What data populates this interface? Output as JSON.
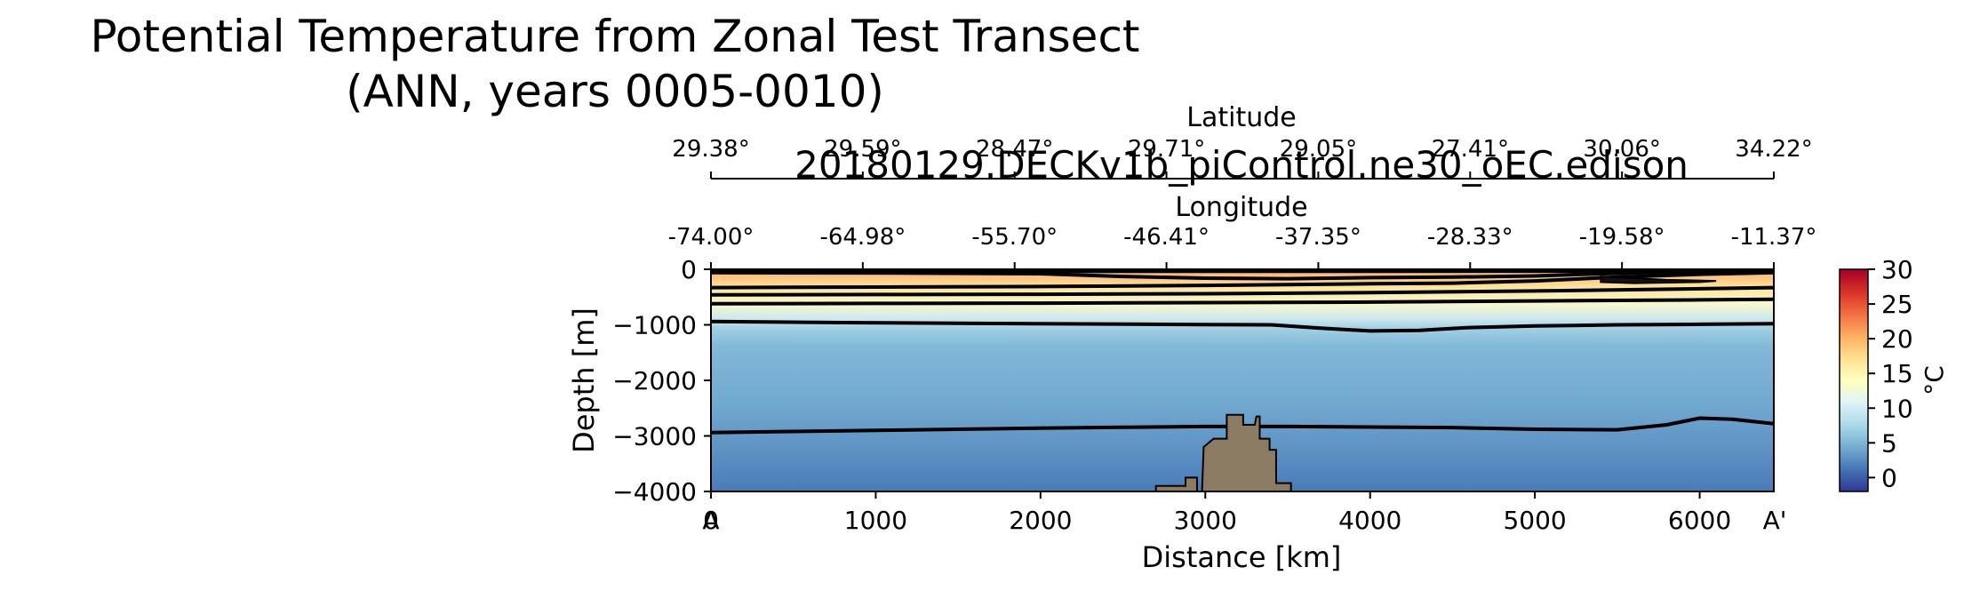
{
  "chart_data": {
    "type": "heatmap",
    "title_line1": "Potential Temperature from Zonal Test Transect",
    "title_line2": "(ANN, years 0005-0010)",
    "subtitle": "20180129.DECKv1b_piControl.ne30_oEC.edison",
    "xlabel": "Distance [km]",
    "ylabel": "Depth [m]",
    "xlim": [
      0,
      6450
    ],
    "ylim": [
      -4000,
      0
    ],
    "x_ticks": [
      0,
      1000,
      2000,
      3000,
      4000,
      5000,
      6000
    ],
    "y_ticks": [
      0,
      -1000,
      -2000,
      -3000,
      -4000
    ],
    "y_tick_labels": [
      "0",
      "−1000",
      "−2000",
      "−3000",
      "−4000"
    ],
    "section_start_label": "A",
    "section_end_label": "A'",
    "longitude_axis_label": "Longitude",
    "longitude_tick_labels": [
      "-74.00°",
      "-64.98°",
      "-55.70°",
      "-46.41°",
      "-37.35°",
      "-28.33°",
      "-19.58°",
      "-11.37°"
    ],
    "latitude_axis_label": "Latitude",
    "latitude_tick_labels": [
      "29.38°",
      "29.59°",
      "28.47°",
      "29.71°",
      "29.05°",
      "27.41°",
      "30.06°",
      "34.22°"
    ],
    "colorbar": {
      "label": "°C",
      "ticks": [
        0,
        5,
        10,
        15,
        20,
        25,
        30
      ],
      "range": [
        -2,
        30
      ],
      "colors": [
        "#313695",
        "#4575b4",
        "#74add1",
        "#abd9e9",
        "#e0f3f8",
        "#ffffbf",
        "#fee090",
        "#fdae61",
        "#f46d43",
        "#d73027",
        "#a50026"
      ]
    },
    "contours": [
      {
        "level": 20,
        "points": [
          [
            0,
            -25
          ],
          [
            1000,
            -25
          ],
          [
            2000,
            -28
          ],
          [
            3000,
            -28
          ],
          [
            4000,
            -28
          ],
          [
            5000,
            -25
          ],
          [
            6000,
            -22
          ],
          [
            6450,
            -20
          ]
        ]
      },
      {
        "level": 15,
        "points": [
          [
            0,
            -60
          ],
          [
            1000,
            -65
          ],
          [
            2000,
            -80
          ],
          [
            2500,
            -130
          ],
          [
            3000,
            -160
          ],
          [
            3500,
            -170
          ],
          [
            4000,
            -150
          ],
          [
            4500,
            -140
          ],
          [
            5000,
            -120
          ],
          [
            5300,
            -90
          ],
          [
            5800,
            -50
          ],
          [
            6450,
            -25
          ]
        ]
      },
      {
        "level": 10,
        "points": [
          [
            0,
            -330
          ],
          [
            1000,
            -320
          ],
          [
            2000,
            -310
          ],
          [
            3000,
            -290
          ],
          [
            4000,
            -260
          ],
          [
            4500,
            -250
          ],
          [
            5000,
            -210
          ],
          [
            5500,
            -140
          ],
          [
            6000,
            -90
          ],
          [
            6450,
            -60
          ]
        ]
      },
      {
        "level": 8,
        "points": [
          [
            0,
            -460
          ],
          [
            1000,
            -455
          ],
          [
            2000,
            -450
          ],
          [
            3000,
            -440
          ],
          [
            4000,
            -420
          ],
          [
            5000,
            -390
          ],
          [
            6000,
            -350
          ],
          [
            6450,
            -330
          ]
        ]
      },
      {
        "level": 6,
        "points": [
          [
            0,
            -620
          ],
          [
            1000,
            -615
          ],
          [
            2000,
            -610
          ],
          [
            3000,
            -600
          ],
          [
            4000,
            -590
          ],
          [
            5000,
            -570
          ],
          [
            6000,
            -550
          ],
          [
            6450,
            -540
          ]
        ]
      },
      {
        "level": 4,
        "points": [
          [
            0,
            -940
          ],
          [
            800,
            -960
          ],
          [
            1600,
            -975
          ],
          [
            2400,
            -985
          ],
          [
            3000,
            -995
          ],
          [
            3400,
            -1000
          ],
          [
            3700,
            -1060
          ],
          [
            4000,
            -1110
          ],
          [
            4300,
            -1100
          ],
          [
            4600,
            -1050
          ],
          [
            5000,
            -1020
          ],
          [
            5500,
            -1000
          ],
          [
            6000,
            -990
          ],
          [
            6450,
            -980
          ]
        ]
      },
      {
        "level": 2,
        "points": [
          [
            0,
            -2940
          ],
          [
            500,
            -2920
          ],
          [
            1000,
            -2900
          ],
          [
            1500,
            -2880
          ],
          [
            2000,
            -2860
          ],
          [
            2500,
            -2845
          ],
          [
            3000,
            -2830
          ],
          [
            3500,
            -2830
          ],
          [
            4000,
            -2840
          ],
          [
            4500,
            -2850
          ],
          [
            5000,
            -2880
          ],
          [
            5500,
            -2890
          ],
          [
            5800,
            -2800
          ],
          [
            6000,
            -2680
          ],
          [
            6200,
            -2700
          ],
          [
            6450,
            -2780
          ]
        ]
      }
    ],
    "warm_patch": {
      "points": [
        [
          5400,
          -130
        ],
        [
          5800,
          -190
        ],
        [
          6100,
          -210
        ],
        [
          6000,
          -230
        ],
        [
          5600,
          -250
        ],
        [
          5400,
          -230
        ]
      ]
    },
    "bathymetry": {
      "color": "#8b7b62",
      "points": [
        [
          2700,
          -4000
        ],
        [
          2700,
          -3900
        ],
        [
          2880,
          -3900
        ],
        [
          2880,
          -3750
        ],
        [
          2950,
          -3750
        ],
        [
          2950,
          -4000
        ],
        [
          2980,
          -4000
        ],
        [
          2990,
          -3200
        ],
        [
          3050,
          -3050
        ],
        [
          3130,
          -3050
        ],
        [
          3130,
          -2620
        ],
        [
          3230,
          -2620
        ],
        [
          3230,
          -2800
        ],
        [
          3300,
          -2800
        ],
        [
          3310,
          -2650
        ],
        [
          3330,
          -2650
        ],
        [
          3330,
          -3050
        ],
        [
          3390,
          -3050
        ],
        [
          3390,
          -3250
        ],
        [
          3430,
          -3250
        ],
        [
          3430,
          -3850
        ],
        [
          3520,
          -3850
        ],
        [
          3520,
          -4000
        ]
      ]
    }
  }
}
